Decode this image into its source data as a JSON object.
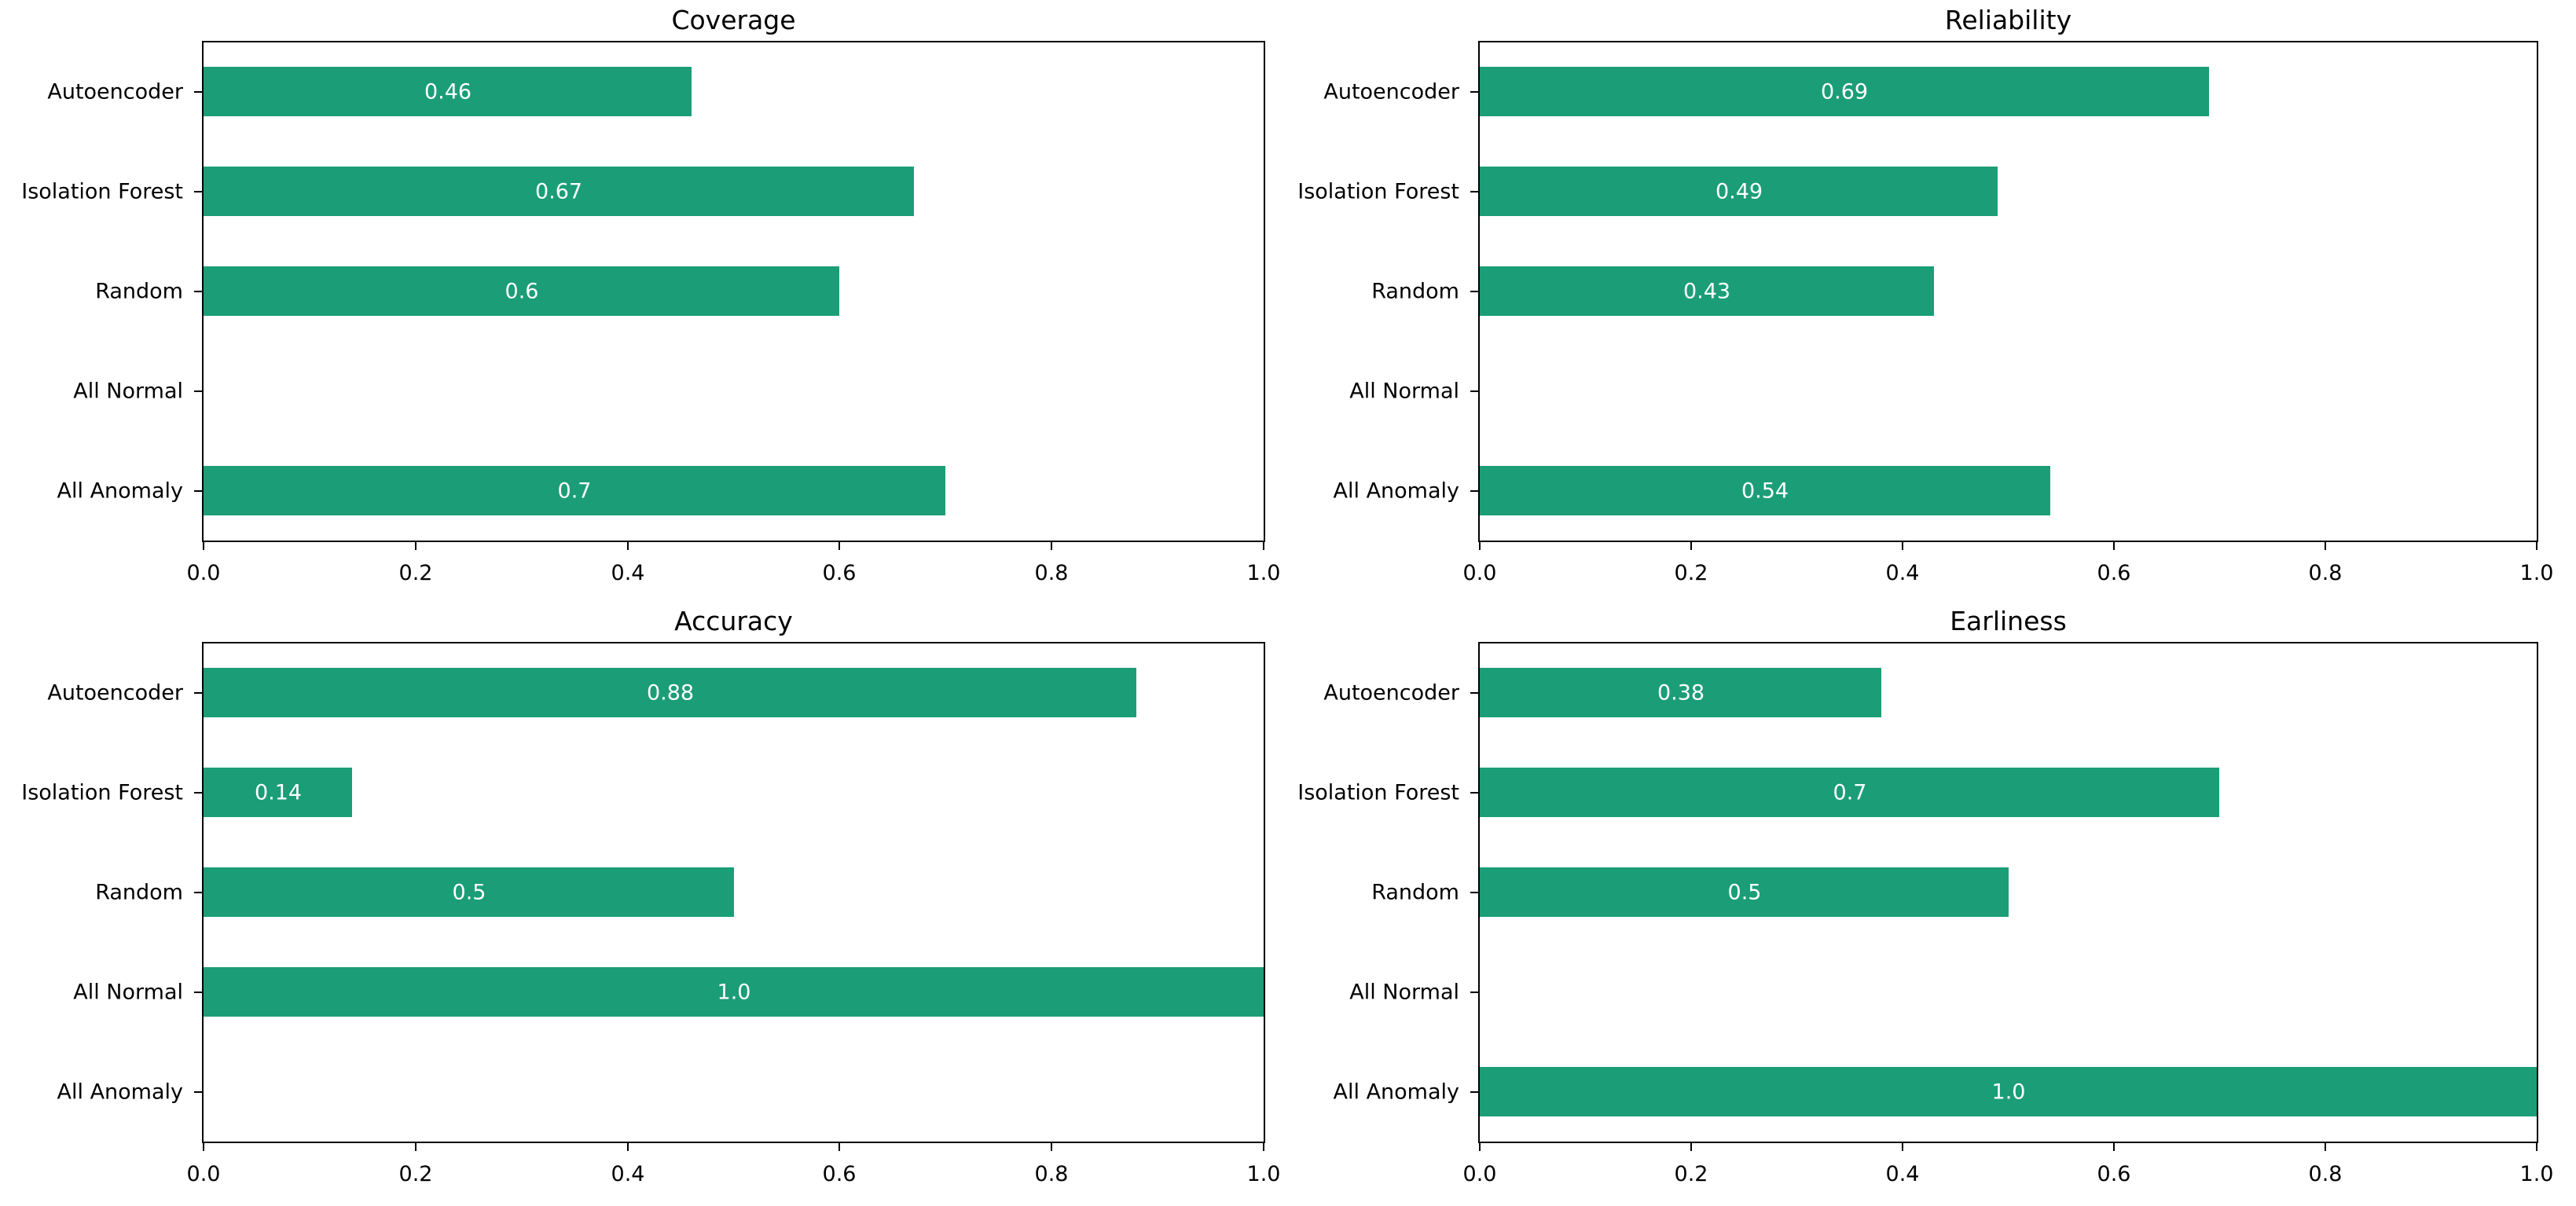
{
  "figure": {
    "background_color": "#ffffff",
    "text_color": "#000000",
    "spine_color": "#000000"
  },
  "chart_data": {
    "type": "bar",
    "orientation": "horizontal",
    "grid": false,
    "legend": false,
    "xlim": [
      0.0,
      1.0
    ],
    "x_tick_labels": [
      "0.0",
      "0.2",
      "0.4",
      "0.6",
      "0.8",
      "1.0"
    ],
    "x_tick_values": [
      0.0,
      0.2,
      0.4,
      0.6,
      0.8,
      1.0
    ],
    "categories": [
      "Autoencoder",
      "Isolation Forest",
      "Random",
      "All Normal",
      "All Anomaly"
    ],
    "bar_color": "#1b9e77",
    "bar_label_color": "#ffffff",
    "charts": [
      {
        "title": "Coverage",
        "values": [
          0.46,
          0.67,
          0.6,
          0.0,
          0.7
        ],
        "bar_labels": [
          "0.46",
          "0.67",
          "0.6",
          "",
          "0.7"
        ]
      },
      {
        "title": "Reliability",
        "values": [
          0.69,
          0.49,
          0.43,
          0.0,
          0.54
        ],
        "bar_labels": [
          "0.69",
          "0.49",
          "0.43",
          "",
          "0.54"
        ]
      },
      {
        "title": "Accuracy",
        "values": [
          0.88,
          0.14,
          0.5,
          1.0,
          0.0
        ],
        "bar_labels": [
          "0.88",
          "0.14",
          "0.5",
          "1.0",
          ""
        ]
      },
      {
        "title": "Earliness",
        "values": [
          0.38,
          0.7,
          0.5,
          0.0,
          1.0
        ],
        "bar_labels": [
          "0.38",
          "0.7",
          "0.5",
          "",
          "1.0"
        ]
      }
    ]
  }
}
